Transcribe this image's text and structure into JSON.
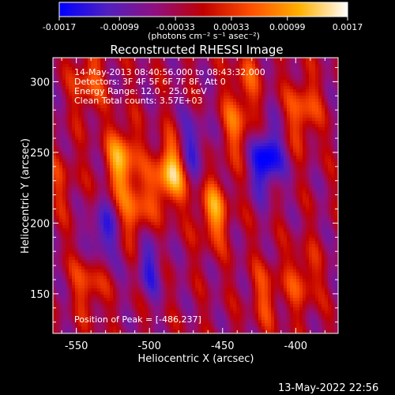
{
  "colorbar": {
    "ticks": [
      "-0.0017",
      "-0.00099",
      "-0.00033",
      "0.00033",
      "0.00099",
      "0.0017"
    ],
    "tick_values": [
      -0.0017,
      -0.00099,
      -0.00033,
      0.00033,
      0.00099,
      0.0017
    ],
    "range": [
      -0.0017,
      0.0017
    ],
    "unit_label": "(photons cm⁻² s⁻¹ asec⁻²)",
    "colors": [
      "#0000ff",
      "#5020c0",
      "#901080",
      "#c00000",
      "#ff5000",
      "#ffb000",
      "#ffffff"
    ]
  },
  "chart_data": {
    "type": "heatmap",
    "title": "Reconstructed RHESSI Image",
    "xlabel": "Heliocentric X (arcsec)",
    "ylabel": "Heliocentric Y (arcsec)",
    "xlim": [
      -566,
      -371
    ],
    "ylim": [
      122,
      317
    ],
    "x_ticks": [
      -550,
      -500,
      -450,
      -400
    ],
    "y_ticks": [
      150,
      200,
      250,
      300
    ],
    "annotations": [
      "14-May-2013 08:40:56.000 to 08:43:32.000",
      "Detectors: 3F 4F 5F 6F 7F 8F, Att 0",
      "Energy Range: 12.0 - 25.0 keV",
      "Clean    Total counts: 3.57E+03"
    ],
    "peak_label": "Position of Peak = [-486,237]",
    "peak": [
      -486,
      237
    ],
    "sources": [
      {
        "x": -486,
        "y": 235,
        "value": 0.0017
      },
      {
        "x": -519,
        "y": 245,
        "value": 0.0014
      },
      {
        "x": -509,
        "y": 210,
        "value": 0.001
      },
      {
        "x": -456,
        "y": 208,
        "value": 0.0012
      },
      {
        "x": -542,
        "y": 300,
        "value": 0.0009
      },
      {
        "x": -541,
        "y": 160,
        "value": 0.0009
      },
      {
        "x": -440,
        "y": 270,
        "value": 0.0009
      },
      {
        "x": -395,
        "y": 160,
        "value": 0.0008
      },
      {
        "x": -395,
        "y": 280,
        "value": 0.001
      },
      {
        "x": -420,
        "y": 150,
        "value": 0.0007
      },
      {
        "x": -433,
        "y": 305,
        "value": 0.0006
      },
      {
        "x": -560,
        "y": 230,
        "value": 0.0005
      }
    ],
    "minima": [
      {
        "x": -420,
        "y": 245,
        "value": -0.0016
      },
      {
        "x": -533,
        "y": 190,
        "value": -0.0011
      },
      {
        "x": -470,
        "y": 255,
        "value": -0.0009
      },
      {
        "x": -500,
        "y": 170,
        "value": -0.0008
      }
    ]
  },
  "footer": {
    "timestamp": "13-May-2022 22:56"
  }
}
